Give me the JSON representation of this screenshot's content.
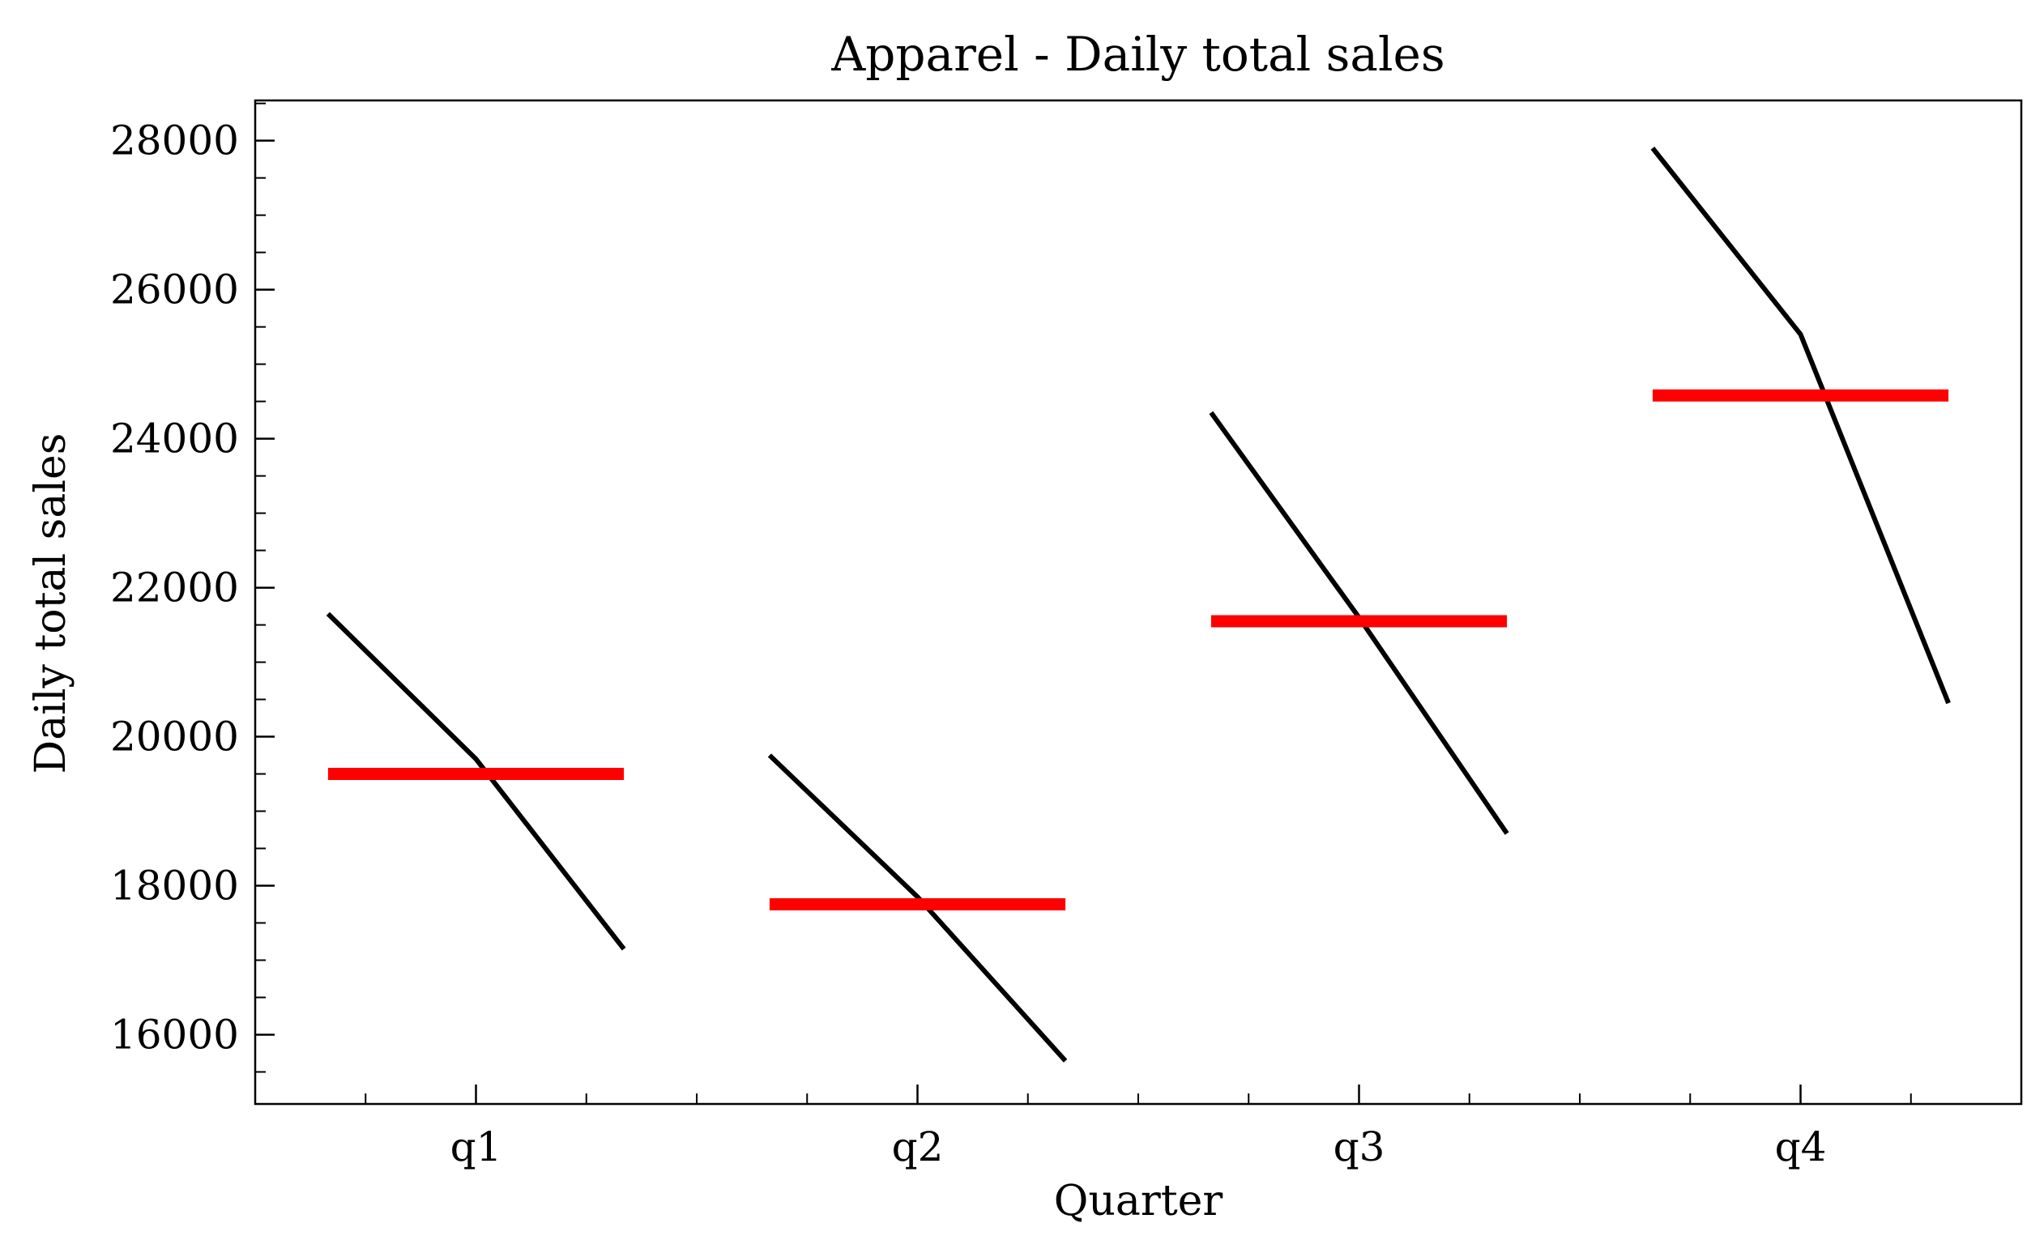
{
  "chart_data": {
    "type": "line",
    "title": "Apparel - Daily total sales",
    "xlabel": "Quarter",
    "ylabel": "Daily total sales",
    "categories": [
      "q1",
      "q2",
      "q3",
      "q4"
    ],
    "ylim": [
      15070,
      28540
    ],
    "yticks": [
      16000,
      18000,
      20000,
      22000,
      24000,
      26000,
      28000
    ],
    "grid": false,
    "line_color": "#000000",
    "mean_color": "#ff0000",
    "groups": [
      {
        "category": "q1",
        "values": [
          21650,
          19700,
          17150
        ],
        "mean": 19500
      },
      {
        "category": "q2",
        "values": [
          19750,
          17850,
          15650
        ],
        "mean": 17750
      },
      {
        "category": "q3",
        "values": [
          24350,
          21600,
          18700
        ],
        "mean": 21550
      },
      {
        "category": "q4",
        "values": [
          27900,
          25400,
          20450
        ],
        "mean": 24580
      }
    ]
  }
}
